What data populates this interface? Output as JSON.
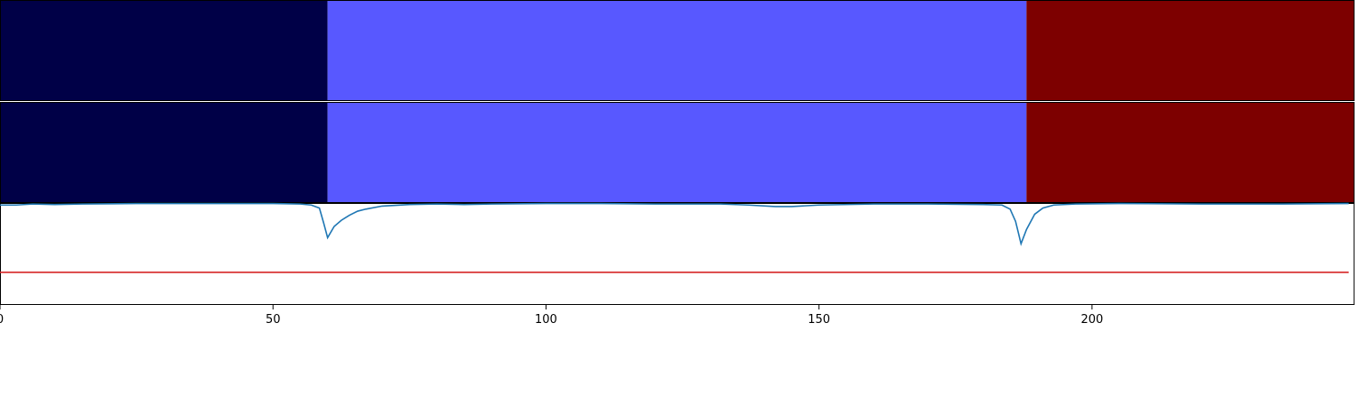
{
  "chart_data": [
    {
      "type": "heatmap",
      "title": "",
      "colormap": "seismic",
      "segments": [
        {
          "x_start": 0,
          "x_end": 60,
          "color": "#000047"
        },
        {
          "x_start": 60,
          "x_end": 188,
          "color": "#5858ff"
        },
        {
          "x_start": 188,
          "x_end": 248,
          "color": "#7d0000"
        }
      ]
    },
    {
      "type": "heatmap",
      "title": "",
      "colormap": "seismic",
      "segments": [
        {
          "x_start": 0,
          "x_end": 60,
          "color": "#000047"
        },
        {
          "x_start": 60,
          "x_end": 188,
          "color": "#5858ff"
        },
        {
          "x_start": 188,
          "x_end": 248,
          "color": "#7d0000"
        }
      ]
    },
    {
      "type": "line",
      "title": "",
      "xlabel": "",
      "ylabel": "",
      "xlim": [
        0,
        248
      ],
      "ylim": [
        0,
        1
      ],
      "x_ticks": [
        0,
        50,
        100,
        150,
        200
      ],
      "grid": false,
      "threshold": {
        "value": 0.32,
        "color": "#d62728"
      },
      "series": [
        {
          "color": "#1f77b4",
          "points": [
            [
              0,
              0.98
            ],
            [
              3,
              0.98
            ],
            [
              6,
              0.99
            ],
            [
              10,
              0.985
            ],
            [
              15,
              0.99
            ],
            [
              25,
              0.995
            ],
            [
              40,
              0.995
            ],
            [
              50,
              0.995
            ],
            [
              55,
              0.99
            ],
            [
              57,
              0.98
            ],
            [
              58.5,
              0.95
            ],
            [
              59.3,
              0.8
            ],
            [
              60,
              0.66
            ],
            [
              61.2,
              0.77
            ],
            [
              62.5,
              0.83
            ],
            [
              64,
              0.88
            ],
            [
              65.5,
              0.92
            ],
            [
              67,
              0.94
            ],
            [
              70,
              0.97
            ],
            [
              75,
              0.985
            ],
            [
              80,
              0.99
            ],
            [
              85,
              0.985
            ],
            [
              90,
              0.99
            ],
            [
              100,
              0.995
            ],
            [
              110,
              0.995
            ],
            [
              120,
              0.99
            ],
            [
              127,
              0.99
            ],
            [
              132,
              0.99
            ],
            [
              137,
              0.98
            ],
            [
              142,
              0.965
            ],
            [
              145,
              0.965
            ],
            [
              150,
              0.98
            ],
            [
              160,
              0.99
            ],
            [
              170,
              0.99
            ],
            [
              180,
              0.985
            ],
            [
              183.5,
              0.98
            ],
            [
              185,
              0.94
            ],
            [
              186,
              0.82
            ],
            [
              187,
              0.6
            ],
            [
              188,
              0.74
            ],
            [
              189.5,
              0.89
            ],
            [
              191,
              0.95
            ],
            [
              193,
              0.98
            ],
            [
              197,
              0.99
            ],
            [
              205,
              0.995
            ],
            [
              220,
              0.99
            ],
            [
              235,
              0.99
            ],
            [
              247,
              0.995
            ]
          ]
        }
      ]
    }
  ]
}
